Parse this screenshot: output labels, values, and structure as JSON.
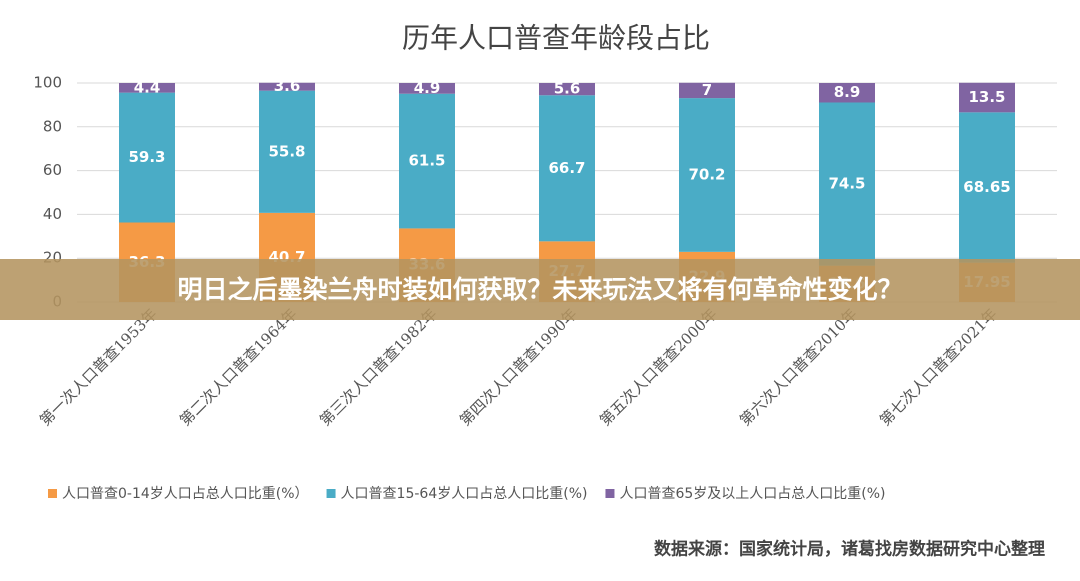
{
  "chart_data": {
    "type": "stacked_bar",
    "title": "历年人口普查年龄段占比",
    "categories": [
      "第一次人口普查1953年",
      "第二次人口普查1964年",
      "第三次人口普查1982年",
      "第四次人口普查1990年",
      "第五次人口普查2000年",
      "第六次人口普查2010年",
      "第七次人口普查2021年"
    ],
    "series": [
      {
        "name": "人口普查0-14岁人口占总人口比重(%）",
        "color": "#f59a45",
        "values": [
          36.3,
          40.7,
          33.6,
          27.7,
          22.9,
          16.6,
          17.95
        ]
      },
      {
        "name": "人口普查15-64岁人口占总人口比重(%)",
        "color": "#4aacc6",
        "values": [
          59.3,
          55.8,
          61.5,
          66.7,
          70.2,
          74.5,
          68.65
        ]
      },
      {
        "name": "人口普查65岁及以上人口占总人口比重(%)",
        "color": "#8064a2",
        "values": [
          4.4,
          3.6,
          4.9,
          5.6,
          7,
          8.9,
          13.5
        ]
      }
    ],
    "ylim": [
      0,
      100
    ],
    "yticks": [
      0,
      20,
      40,
      60,
      80,
      100
    ],
    "grid": true,
    "legend": "bottom"
  },
  "source": "数据来源：国家统计局，诸葛找房数据研究中心整理",
  "banner": "明日之后墨染兰舟时装如何获取？未来玩法又将有何革命性变化？"
}
